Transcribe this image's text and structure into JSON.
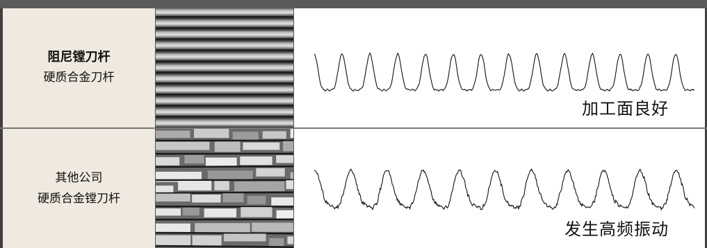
{
  "rows": [
    {
      "label_main": "阻尼镗刀杆",
      "label_sub": "硬质合金刀杆",
      "caption": "加工面良好",
      "texture": "smooth"
    },
    {
      "label_main": "",
      "label_sub": "其他公司",
      "label_sub2": "硬质合金镗刀杆",
      "caption": "发生高频振动",
      "texture": "rough"
    }
  ]
}
